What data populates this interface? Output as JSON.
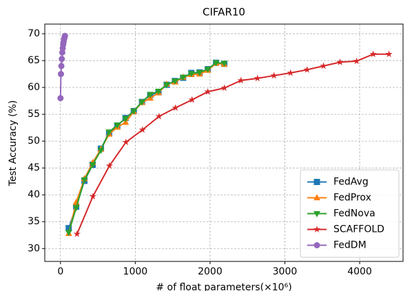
{
  "chart_data": {
    "type": "line",
    "title": "CIFAR10",
    "xlabel": "# of float parameters(×10⁶)",
    "ylabel": "Test Accuracy (%)",
    "xlim": [
      -210,
      4580
    ],
    "ylim": [
      27.6,
      71.8
    ],
    "xticks": [
      0,
      1000,
      2000,
      3000,
      4000
    ],
    "yticks": [
      30,
      35,
      40,
      45,
      50,
      55,
      60,
      65,
      70
    ],
    "grid": true,
    "legend": "lower right",
    "series": [
      {
        "name": "FedAvg",
        "color": "#1f77b4",
        "marker": "square",
        "x": [
          110,
          210,
          320,
          430,
          540,
          650,
          760,
          870,
          980,
          1090,
          1200,
          1310,
          1420,
          1530,
          1640,
          1750,
          1860,
          1970,
          2080,
          2190
        ],
        "values": [
          33.8,
          37.8,
          42.6,
          45.6,
          48.6,
          51.5,
          52.9,
          54.3,
          55.6,
          57.3,
          58.6,
          59.1,
          60.5,
          61.2,
          61.8,
          62.7,
          62.8,
          63.4,
          64.6,
          64.4
        ]
      },
      {
        "name": "FedProx",
        "color": "#ff7f0e",
        "marker": "triangle-up",
        "x": [
          110,
          210,
          320,
          430,
          540,
          650,
          760,
          870,
          980,
          1090,
          1200,
          1310,
          1420,
          1530,
          1640,
          1750,
          1860,
          1970,
          2080,
          2190
        ],
        "values": [
          32.8,
          38.6,
          43.0,
          46.0,
          48.5,
          51.3,
          52.6,
          53.5,
          55.5,
          57.2,
          58.0,
          59.0,
          60.6,
          61.0,
          61.9,
          62.4,
          62.5,
          63.2,
          64.5,
          64.3
        ]
      },
      {
        "name": "FedNova",
        "color": "#2ca02c",
        "marker": "triangle-down",
        "x": [
          110,
          210,
          320,
          430,
          540,
          650,
          760,
          870,
          980,
          1090,
          1200,
          1310,
          1420,
          1530,
          1640,
          1750,
          1860,
          1970,
          2080,
          2190
        ],
        "values": [
          33.0,
          37.6,
          42.8,
          45.6,
          48.3,
          51.7,
          53.0,
          54.2,
          55.6,
          57.3,
          58.7,
          59.3,
          60.5,
          61.2,
          61.9,
          62.6,
          62.8,
          63.4,
          64.6,
          64.5
        ]
      },
      {
        "name": "SCAFFOLD",
        "color": "#d62728",
        "marker": "star",
        "x": [
          221,
          433,
          654,
          875,
          1096,
          1317,
          1538,
          1759,
          1970,
          2192,
          2413,
          2634,
          2855,
          3076,
          3297,
          3517,
          3738,
          3959,
          4181,
          4392
        ],
        "values": [
          32.7,
          39.7,
          45.4,
          49.8,
          52.1,
          54.6,
          56.2,
          57.7,
          59.2,
          59.9,
          61.3,
          61.7,
          62.2,
          62.7,
          63.3,
          64.0,
          64.7,
          64.9,
          66.2,
          66.2
        ]
      },
      {
        "name": "FedDM",
        "color": "#9467bd",
        "marker": "circle",
        "x": [
          0,
          6,
          12,
          18,
          24,
          30,
          36,
          42,
          48,
          54,
          60
        ],
        "values": [
          58.0,
          62.5,
          64.0,
          65.3,
          66.5,
          67.3,
          68.0,
          68.5,
          69.0,
          69.3,
          69.6
        ]
      }
    ]
  }
}
